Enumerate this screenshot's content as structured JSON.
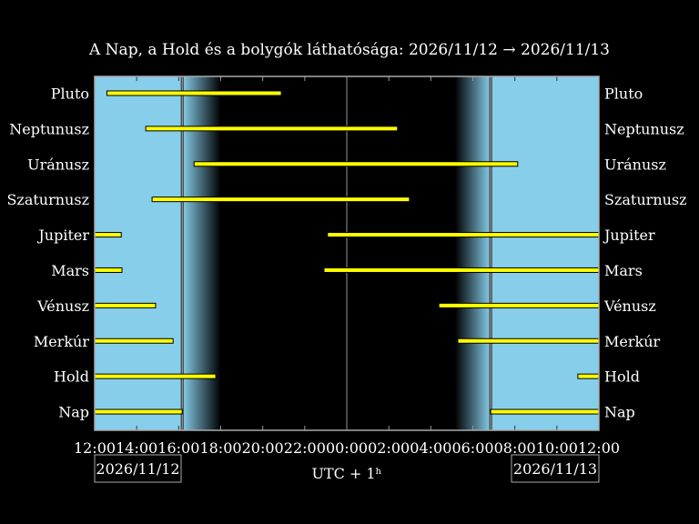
{
  "chart_data": {
    "type": "bar",
    "subtype": "timeline",
    "title": "A Nap, a Hold és a bolygók láthatósága: 2026/11/12 → 2026/11/13",
    "xlabel": "UTC + 1ʰ",
    "date_start": "2026/11/12",
    "date_end": "2026/11/13",
    "x_range_hours": [
      12,
      36
    ],
    "x_tick_labels": [
      "12:00",
      "14:00",
      "16:00",
      "18:00",
      "20:00",
      "22:00",
      "00:00",
      "02:00",
      "04:00",
      "06:00",
      "08:00",
      "10:00",
      "12:00"
    ],
    "sunset": "16:10",
    "dusk_end": "18:00",
    "dawn_start": "05:09",
    "sunrise": "06:51",
    "colors": {
      "day": "#87ceeb",
      "night": "#000000",
      "bar": "#ffff00",
      "bar_outline": "#000000",
      "frame": "#aaaaaa"
    },
    "rows": [
      {
        "name": "Pluto",
        "intervals": [
          [
            "12:35",
            "20:53"
          ]
        ]
      },
      {
        "name": "Neptunusz",
        "intervals": [
          [
            "14:26",
            "02:25"
          ]
        ]
      },
      {
        "name": "Uránusz",
        "intervals": [
          [
            "16:44",
            "08:08"
          ]
        ]
      },
      {
        "name": "Szaturnusz",
        "intervals": [
          [
            "14:44",
            "02:59"
          ]
        ]
      },
      {
        "name": "Jupiter",
        "intervals": [
          [
            "12:00",
            "13:16"
          ],
          [
            "23:05",
            "12:00"
          ]
        ]
      },
      {
        "name": "Mars",
        "intervals": [
          [
            "12:00",
            "13:18"
          ],
          [
            "22:55",
            "12:00"
          ]
        ]
      },
      {
        "name": "Vénusz",
        "intervals": [
          [
            "12:00",
            "14:54"
          ],
          [
            "04:23",
            "12:00"
          ]
        ]
      },
      {
        "name": "Merkúr",
        "intervals": [
          [
            "12:00",
            "15:44"
          ],
          [
            "05:17",
            "12:00"
          ]
        ]
      },
      {
        "name": "Hold",
        "intervals": [
          [
            "12:00",
            "17:46"
          ],
          [
            "11:00",
            "12:00"
          ]
        ]
      },
      {
        "name": "Nap",
        "intervals": [
          [
            "12:00",
            "16:10"
          ],
          [
            "06:51",
            "12:00"
          ]
        ]
      }
    ]
  }
}
